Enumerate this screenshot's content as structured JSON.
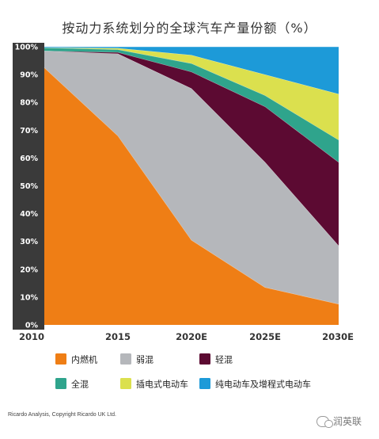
{
  "chart_data": {
    "type": "area",
    "stacked": true,
    "title": "按动力系统划分的全球汽车产量份额（%）",
    "x": [
      "2010",
      "2015",
      "2020E",
      "2025E",
      "2030E"
    ],
    "yticks": [
      "0%",
      "10%",
      "20%",
      "30%",
      "40%",
      "50%",
      "60%",
      "70%",
      "80%",
      "90%",
      "100%"
    ],
    "ylim": [
      0,
      100
    ],
    "series": [
      {
        "name": "内燃机",
        "values": [
          92.5,
          68,
          30.5,
          13.5,
          7.5
        ],
        "color": "#ef7e15"
      },
      {
        "name": "弱混",
        "values": [
          6,
          29.5,
          54.5,
          45,
          21
        ],
        "color": "#b5b7bb"
      },
      {
        "name": "轻混",
        "values": [
          0,
          0.5,
          6,
          20,
          30
        ],
        "color": "#5c0a32"
      },
      {
        "name": "全混",
        "values": [
          1.2,
          1,
          3,
          4,
          8
        ],
        "color": "#2fa48c"
      },
      {
        "name": "插电式电动车",
        "values": [
          0,
          0.5,
          3,
          7.5,
          16.5
        ],
        "color": "#dbe04e"
      },
      {
        "name": "纯电动车及增程式电动车",
        "values": [
          0.3,
          0.5,
          3,
          10,
          17
        ],
        "color": "#1d9ad8"
      }
    ],
    "grid": false,
    "legend_position": "bottom"
  },
  "footer": {
    "copyright": "Ricardo Analysis, Copyright Ricardo UK Ltd.",
    "watermark": "润英联"
  }
}
